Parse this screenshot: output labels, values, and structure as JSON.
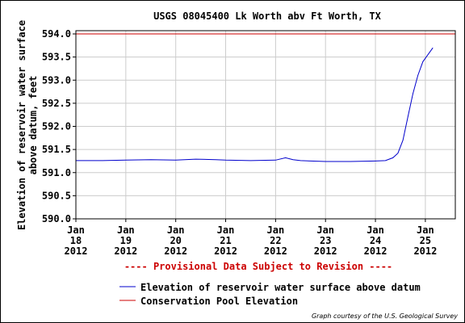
{
  "chart_data": {
    "type": "line",
    "title": "USGS 08045400 Lk Worth abv Ft Worth, TX",
    "ylabel_lines": [
      "Elevation of reservoir water surface",
      "above datum, feet"
    ],
    "ylim": [
      590.0,
      594.1
    ],
    "yticks": [
      "590.0",
      "590.5",
      "591.0",
      "591.5",
      "592.0",
      "592.5",
      "593.0",
      "593.5",
      "594.0"
    ],
    "xlim": [
      18,
      25.6
    ],
    "xticks": [
      {
        "x": 18,
        "month": "Jan",
        "day": "18",
        "year": "2012"
      },
      {
        "x": 19,
        "month": "Jan",
        "day": "19",
        "year": "2012"
      },
      {
        "x": 20,
        "month": "Jan",
        "day": "20",
        "year": "2012"
      },
      {
        "x": 21,
        "month": "Jan",
        "day": "21",
        "year": "2012"
      },
      {
        "x": 22,
        "month": "Jan",
        "day": "22",
        "year": "2012"
      },
      {
        "x": 23,
        "month": "Jan",
        "day": "23",
        "year": "2012"
      },
      {
        "x": 24,
        "month": "Jan",
        "day": "24",
        "year": "2012"
      },
      {
        "x": 25,
        "month": "Jan",
        "day": "25",
        "year": "2012"
      }
    ],
    "grid": true,
    "series": [
      {
        "name": "Elevation of reservoir water surface above datum",
        "color": "#0000cc",
        "points": [
          [
            17.5,
            591.27
          ],
          [
            18.0,
            591.26
          ],
          [
            18.5,
            591.26
          ],
          [
            19.0,
            591.27
          ],
          [
            19.5,
            591.28
          ],
          [
            20.0,
            591.27
          ],
          [
            20.4,
            591.29
          ],
          [
            20.8,
            591.28
          ],
          [
            21.0,
            591.27
          ],
          [
            21.5,
            591.26
          ],
          [
            22.0,
            591.27
          ],
          [
            22.2,
            591.32
          ],
          [
            22.35,
            591.28
          ],
          [
            22.5,
            591.26
          ],
          [
            23.0,
            591.24
          ],
          [
            23.5,
            591.24
          ],
          [
            24.0,
            591.25
          ],
          [
            24.2,
            591.26
          ],
          [
            24.35,
            591.32
          ],
          [
            24.45,
            591.42
          ],
          [
            24.55,
            591.7
          ],
          [
            24.65,
            592.2
          ],
          [
            24.75,
            592.7
          ],
          [
            24.85,
            593.1
          ],
          [
            24.95,
            593.4
          ],
          [
            25.05,
            593.55
          ],
          [
            25.15,
            593.7
          ]
        ]
      },
      {
        "name": "Conservation Pool Elevation",
        "color": "#cc0000",
        "points": [
          [
            17.5,
            594.0
          ],
          [
            25.6,
            594.0
          ]
        ]
      }
    ],
    "annotation": "---- Provisional Data Subject to Revision ----",
    "legend_placement": "bottom-left",
    "credit": "Graph courtesy of the U.S. Geological Survey"
  }
}
